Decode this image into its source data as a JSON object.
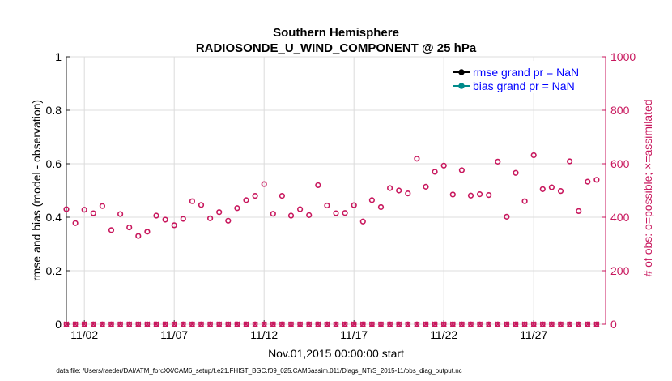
{
  "chart_data": {
    "type": "scatter",
    "title": "Southern Hemisphere",
    "subtitle": "RADIOSONDE_U_WIND_COMPONENT @ 25 hPa",
    "xlabel": "Nov.01,2015 00:00:00 start",
    "ylabel": "rmse and bias (model - observation)",
    "ylabel_right": "# of obs: o=possible; ×=assimilated",
    "x_ticks": [
      "11/02",
      "11/07",
      "11/12",
      "11/17",
      "11/22",
      "11/27"
    ],
    "x_tick_days": [
      2,
      7,
      12,
      17,
      22,
      27
    ],
    "xlim": [
      1.0,
      31.0
    ],
    "ylim": [
      0,
      1
    ],
    "y_ticks": [
      "0",
      "0.2",
      "0.4",
      "0.6",
      "0.8",
      "1"
    ],
    "ylim_right": [
      0,
      1000
    ],
    "y_ticks_right": [
      "0",
      "200",
      "400",
      "600",
      "800",
      "1000"
    ],
    "legend_position": "top-right",
    "series": [
      {
        "name": "rmse grand pr = NaN",
        "color": "#000000",
        "values": []
      },
      {
        "name": "bias grand pr = NaN",
        "color": "#008b8b",
        "values": []
      },
      {
        "name": "possible observations",
        "axis": "right",
        "color": "#c8175d",
        "x": [
          1.0,
          1.5,
          2.0,
          2.5,
          3.0,
          3.5,
          4.0,
          4.5,
          5.0,
          5.5,
          6.0,
          6.5,
          7.0,
          7.5,
          8.0,
          8.5,
          9.0,
          9.5,
          10.0,
          10.5,
          11.0,
          11.5,
          12.0,
          12.5,
          13.0,
          13.5,
          14.0,
          14.5,
          15.0,
          15.5,
          16.0,
          16.5,
          17.0,
          17.5,
          18.0,
          18.5,
          19.0,
          19.5,
          20.0,
          20.5,
          21.0,
          21.5,
          22.0,
          22.5,
          23.0,
          23.5,
          24.0,
          24.5,
          25.0,
          25.5,
          26.0,
          26.5,
          27.0,
          27.5,
          28.0,
          28.5,
          29.0,
          29.5,
          30.0,
          30.5
        ],
        "values": [
          430,
          378,
          428,
          415,
          442,
          352,
          412,
          362,
          330,
          346,
          406,
          391,
          370,
          394,
          460,
          446,
          396,
          419,
          387,
          434,
          464,
          480,
          524,
          413,
          480,
          406,
          430,
          408,
          520,
          444,
          415,
          416,
          445,
          384,
          464,
          438,
          509,
          500,
          489,
          619,
          514,
          570,
          593,
          485,
          576,
          481,
          486,
          483,
          608,
          402,
          566,
          460,
          632,
          505,
          512,
          498,
          609,
          423,
          533,
          540
        ]
      },
      {
        "name": "assimilated observations",
        "axis": "right",
        "color": "#c8175d",
        "x": [
          1.0,
          1.5,
          2.0,
          2.5,
          3.0,
          3.5,
          4.0,
          4.5,
          5.0,
          5.5,
          6.0,
          6.5,
          7.0,
          7.5,
          8.0,
          8.5,
          9.0,
          9.5,
          10.0,
          10.5,
          11.0,
          11.5,
          12.0,
          12.5,
          13.0,
          13.5,
          14.0,
          14.5,
          15.0,
          15.5,
          16.0,
          16.5,
          17.0,
          17.5,
          18.0,
          18.5,
          19.0,
          19.5,
          20.0,
          20.5,
          21.0,
          21.5,
          22.0,
          22.5,
          23.0,
          23.5,
          24.0,
          24.5,
          25.0,
          25.5,
          26.0,
          26.5,
          27.0,
          27.5,
          28.0,
          28.5,
          29.0,
          29.5,
          30.0,
          30.5
        ],
        "values": [
          0,
          0,
          0,
          0,
          0,
          0,
          0,
          0,
          0,
          0,
          0,
          0,
          0,
          0,
          0,
          0,
          0,
          0,
          0,
          0,
          0,
          0,
          0,
          0,
          0,
          0,
          0,
          0,
          0,
          0,
          0,
          0,
          0,
          0,
          0,
          0,
          0,
          0,
          0,
          0,
          0,
          0,
          0,
          0,
          0,
          0,
          0,
          0,
          0,
          0,
          0,
          0,
          0,
          0,
          0,
          0,
          0,
          0,
          0,
          0
        ]
      }
    ],
    "footnote": "data file: /Users/raeder/DAI/ATM_forcXX/CAM6_setup/f.e21.FHIST_BGC.f09_025.CAM6assim.011/Diags_NTrS_2015-11/obs_diag_output.nc"
  }
}
